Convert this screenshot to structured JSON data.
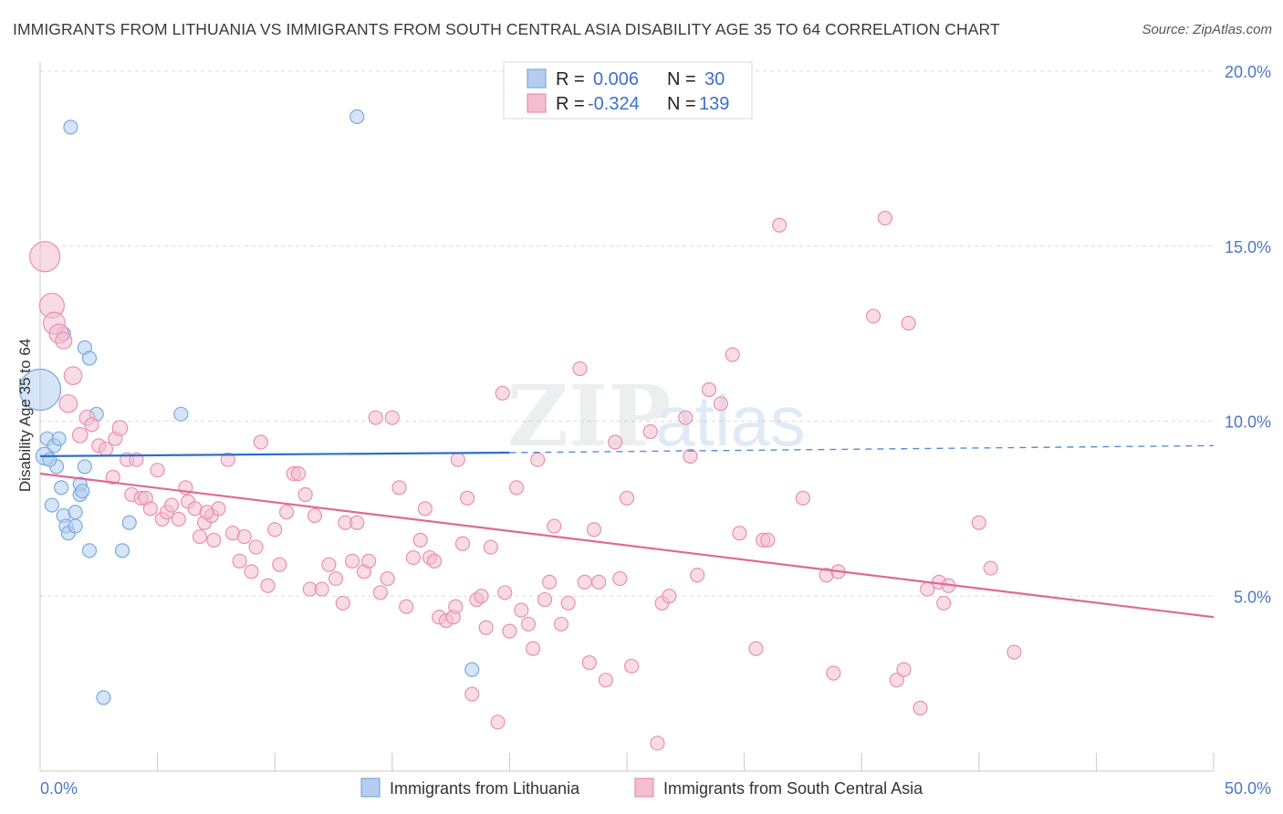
{
  "header": {
    "title": "IMMIGRANTS FROM LITHUANIA VS IMMIGRANTS FROM SOUTH CENTRAL ASIA DISABILITY AGE 35 TO 64 CORRELATION CHART",
    "source": "Source: ZipAtlas.com"
  },
  "watermark": {
    "part1": "ZIP",
    "part2": "atlas"
  },
  "legend_box": {
    "rows": [
      {
        "r_label": "R =",
        "r_value": "0.006",
        "n_label": "N =",
        "n_value": "30"
      },
      {
        "r_label": "R =",
        "r_value": "-0.324",
        "n_label": "N =",
        "n_value": "139"
      }
    ]
  },
  "chart_data": {
    "type": "scatter",
    "title": "IMMIGRANTS FROM LITHUANIA VS IMMIGRANTS FROM SOUTH CENTRAL ASIA DISABILITY AGE 35 TO 64 CORRELATION CHART",
    "xlabel": "",
    "ylabel": "Disability Age 35 to 64",
    "xlim": [
      0,
      50
    ],
    "ylim": [
      0,
      20
    ],
    "x_tick_labels": [
      "0.0%",
      "50.0%"
    ],
    "y_ticks": [
      5,
      10,
      15,
      20
    ],
    "y_tick_labels": [
      "5.0%",
      "10.0%",
      "15.0%",
      "20.0%"
    ],
    "grid": true,
    "legend_position": "bottom",
    "series": [
      {
        "name": "Immigrants from Lithuania",
        "color": "#7aaae0",
        "fill": "#b4cdf0",
        "trend": {
          "x": [
            0,
            20
          ],
          "y": [
            9.0,
            9.1
          ],
          "extended_x": [
            20,
            50
          ],
          "extended_y": [
            9.1,
            9.3
          ],
          "color": "#2c6fc9"
        },
        "points": [
          {
            "x": 0.0,
            "y": 10.9,
            "s": 3
          },
          {
            "x": 0.2,
            "y": 9.0,
            "s": 1.3
          },
          {
            "x": 0.3,
            "y": 9.5,
            "s": 1
          },
          {
            "x": 0.5,
            "y": 7.6,
            "s": 1
          },
          {
            "x": 0.6,
            "y": 9.3,
            "s": 1
          },
          {
            "x": 0.7,
            "y": 8.7,
            "s": 1
          },
          {
            "x": 0.8,
            "y": 9.5,
            "s": 1
          },
          {
            "x": 0.9,
            "y": 8.1,
            "s": 1
          },
          {
            "x": 1.0,
            "y": 7.3,
            "s": 1
          },
          {
            "x": 1.1,
            "y": 7.0,
            "s": 1
          },
          {
            "x": 1.2,
            "y": 6.8,
            "s": 1
          },
          {
            "x": 1.0,
            "y": 12.5,
            "s": 1
          },
          {
            "x": 1.3,
            "y": 18.4,
            "s": 1
          },
          {
            "x": 1.5,
            "y": 7.4,
            "s": 1
          },
          {
            "x": 1.5,
            "y": 7.0,
            "s": 1
          },
          {
            "x": 1.7,
            "y": 7.9,
            "s": 1
          },
          {
            "x": 1.7,
            "y": 8.2,
            "s": 1
          },
          {
            "x": 1.9,
            "y": 8.7,
            "s": 1
          },
          {
            "x": 1.9,
            "y": 12.1,
            "s": 1
          },
          {
            "x": 2.1,
            "y": 11.8,
            "s": 1
          },
          {
            "x": 2.1,
            "y": 6.3,
            "s": 1
          },
          {
            "x": 2.4,
            "y": 10.2,
            "s": 1
          },
          {
            "x": 2.7,
            "y": 2.1,
            "s": 1
          },
          {
            "x": 3.5,
            "y": 6.3,
            "s": 1
          },
          {
            "x": 3.8,
            "y": 7.1,
            "s": 1
          },
          {
            "x": 6.0,
            "y": 10.2,
            "s": 1
          },
          {
            "x": 13.5,
            "y": 18.7,
            "s": 1
          },
          {
            "x": 18.4,
            "y": 2.9,
            "s": 1
          },
          {
            "x": 0.4,
            "y": 8.9,
            "s": 1
          },
          {
            "x": 1.8,
            "y": 8.0,
            "s": 1
          }
        ]
      },
      {
        "name": "Immigrants from South Central Asia",
        "color": "#e890b0",
        "fill": "#f4bdd0",
        "trend": {
          "x": [
            0,
            50
          ],
          "y": [
            8.5,
            4.4
          ],
          "color": "#e06896"
        },
        "points": [
          {
            "x": 0.2,
            "y": 14.7,
            "s": 2.2
          },
          {
            "x": 0.5,
            "y": 13.3,
            "s": 1.8
          },
          {
            "x": 0.6,
            "y": 12.8,
            "s": 1.6
          },
          {
            "x": 0.8,
            "y": 12.5,
            "s": 1.4
          },
          {
            "x": 1.0,
            "y": 12.3,
            "s": 1.2
          },
          {
            "x": 1.4,
            "y": 11.3,
            "s": 1.3
          },
          {
            "x": 1.2,
            "y": 10.5,
            "s": 1.3
          },
          {
            "x": 1.7,
            "y": 9.6,
            "s": 1.1
          },
          {
            "x": 2.0,
            "y": 10.1,
            "s": 1.1
          },
          {
            "x": 2.2,
            "y": 9.9,
            "s": 1
          },
          {
            "x": 2.5,
            "y": 9.3,
            "s": 1
          },
          {
            "x": 2.8,
            "y": 9.2,
            "s": 1
          },
          {
            "x": 3.1,
            "y": 8.4,
            "s": 1
          },
          {
            "x": 3.2,
            "y": 9.5,
            "s": 1
          },
          {
            "x": 3.4,
            "y": 9.8,
            "s": 1.1
          },
          {
            "x": 3.7,
            "y": 8.9,
            "s": 1
          },
          {
            "x": 3.9,
            "y": 7.9,
            "s": 1
          },
          {
            "x": 4.1,
            "y": 8.9,
            "s": 1
          },
          {
            "x": 4.3,
            "y": 7.8,
            "s": 1
          },
          {
            "x": 4.5,
            "y": 7.8,
            "s": 1
          },
          {
            "x": 4.7,
            "y": 7.5,
            "s": 1
          },
          {
            "x": 5.0,
            "y": 8.6,
            "s": 1
          },
          {
            "x": 5.2,
            "y": 7.2,
            "s": 1
          },
          {
            "x": 5.4,
            "y": 7.4,
            "s": 1
          },
          {
            "x": 5.6,
            "y": 7.6,
            "s": 1
          },
          {
            "x": 5.9,
            "y": 7.2,
            "s": 1
          },
          {
            "x": 6.2,
            "y": 8.1,
            "s": 1
          },
          {
            "x": 6.3,
            "y": 7.7,
            "s": 1
          },
          {
            "x": 6.6,
            "y": 7.5,
            "s": 1
          },
          {
            "x": 6.8,
            "y": 6.7,
            "s": 1
          },
          {
            "x": 7.0,
            "y": 7.1,
            "s": 1
          },
          {
            "x": 7.3,
            "y": 7.3,
            "s": 1
          },
          {
            "x": 7.6,
            "y": 7.5,
            "s": 1
          },
          {
            "x": 7.4,
            "y": 6.6,
            "s": 1
          },
          {
            "x": 7.1,
            "y": 7.4,
            "s": 1
          },
          {
            "x": 8.0,
            "y": 8.9,
            "s": 1
          },
          {
            "x": 8.2,
            "y": 6.8,
            "s": 1
          },
          {
            "x": 8.5,
            "y": 6.0,
            "s": 1
          },
          {
            "x": 8.7,
            "y": 6.7,
            "s": 1
          },
          {
            "x": 9.0,
            "y": 5.7,
            "s": 1
          },
          {
            "x": 9.2,
            "y": 6.4,
            "s": 1
          },
          {
            "x": 9.4,
            "y": 9.4,
            "s": 1
          },
          {
            "x": 9.7,
            "y": 5.3,
            "s": 1
          },
          {
            "x": 10.0,
            "y": 6.9,
            "s": 1
          },
          {
            "x": 10.2,
            "y": 5.9,
            "s": 1
          },
          {
            "x": 10.5,
            "y": 7.4,
            "s": 1
          },
          {
            "x": 10.8,
            "y": 8.5,
            "s": 1
          },
          {
            "x": 11.0,
            "y": 8.5,
            "s": 1
          },
          {
            "x": 11.3,
            "y": 7.9,
            "s": 1
          },
          {
            "x": 11.5,
            "y": 5.2,
            "s": 1
          },
          {
            "x": 11.7,
            "y": 7.3,
            "s": 1
          },
          {
            "x": 12.0,
            "y": 5.2,
            "s": 1
          },
          {
            "x": 12.3,
            "y": 5.9,
            "s": 1
          },
          {
            "x": 12.6,
            "y": 5.5,
            "s": 1
          },
          {
            "x": 12.9,
            "y": 4.8,
            "s": 1
          },
          {
            "x": 13.0,
            "y": 7.1,
            "s": 1
          },
          {
            "x": 13.3,
            "y": 6.0,
            "s": 1
          },
          {
            "x": 13.5,
            "y": 7.1,
            "s": 1
          },
          {
            "x": 13.8,
            "y": 5.7,
            "s": 1
          },
          {
            "x": 14.0,
            "y": 6.0,
            "s": 1
          },
          {
            "x": 14.3,
            "y": 10.1,
            "s": 1
          },
          {
            "x": 14.5,
            "y": 5.1,
            "s": 1
          },
          {
            "x": 14.8,
            "y": 5.5,
            "s": 1
          },
          {
            "x": 15.0,
            "y": 10.1,
            "s": 1
          },
          {
            "x": 15.3,
            "y": 8.1,
            "s": 1
          },
          {
            "x": 15.6,
            "y": 4.7,
            "s": 1
          },
          {
            "x": 15.9,
            "y": 6.1,
            "s": 1
          },
          {
            "x": 16.2,
            "y": 6.6,
            "s": 1
          },
          {
            "x": 16.4,
            "y": 7.5,
            "s": 1
          },
          {
            "x": 16.6,
            "y": 6.1,
            "s": 1
          },
          {
            "x": 16.8,
            "y": 6.0,
            "s": 1
          },
          {
            "x": 17.0,
            "y": 4.4,
            "s": 1
          },
          {
            "x": 17.3,
            "y": 4.3,
            "s": 1
          },
          {
            "x": 17.6,
            "y": 4.4,
            "s": 1
          },
          {
            "x": 17.7,
            "y": 4.7,
            "s": 1
          },
          {
            "x": 17.8,
            "y": 8.9,
            "s": 1
          },
          {
            "x": 18.0,
            "y": 6.5,
            "s": 1
          },
          {
            "x": 18.2,
            "y": 7.8,
            "s": 1
          },
          {
            "x": 18.4,
            "y": 2.2,
            "s": 1
          },
          {
            "x": 18.6,
            "y": 4.9,
            "s": 1
          },
          {
            "x": 18.8,
            "y": 5.0,
            "s": 1
          },
          {
            "x": 19.0,
            "y": 4.1,
            "s": 1
          },
          {
            "x": 19.2,
            "y": 6.4,
            "s": 1
          },
          {
            "x": 19.5,
            "y": 1.4,
            "s": 1
          },
          {
            "x": 19.7,
            "y": 10.8,
            "s": 1
          },
          {
            "x": 19.8,
            "y": 5.1,
            "s": 1
          },
          {
            "x": 20.0,
            "y": 4.0,
            "s": 1
          },
          {
            "x": 20.3,
            "y": 8.1,
            "s": 1
          },
          {
            "x": 20.5,
            "y": 4.6,
            "s": 1
          },
          {
            "x": 20.8,
            "y": 4.2,
            "s": 1
          },
          {
            "x": 21.0,
            "y": 3.5,
            "s": 1
          },
          {
            "x": 21.2,
            "y": 8.9,
            "s": 1
          },
          {
            "x": 21.5,
            "y": 4.9,
            "s": 1
          },
          {
            "x": 21.7,
            "y": 5.4,
            "s": 1
          },
          {
            "x": 21.9,
            "y": 7.0,
            "s": 1
          },
          {
            "x": 22.2,
            "y": 4.2,
            "s": 1
          },
          {
            "x": 22.5,
            "y": 4.8,
            "s": 1
          },
          {
            "x": 23.0,
            "y": 11.5,
            "s": 1
          },
          {
            "x": 23.2,
            "y": 5.4,
            "s": 1
          },
          {
            "x": 23.4,
            "y": 3.1,
            "s": 1
          },
          {
            "x": 23.6,
            "y": 6.9,
            "s": 1
          },
          {
            "x": 23.8,
            "y": 5.4,
            "s": 1
          },
          {
            "x": 24.1,
            "y": 2.6,
            "s": 1
          },
          {
            "x": 24.5,
            "y": 9.4,
            "s": 1
          },
          {
            "x": 24.7,
            "y": 5.5,
            "s": 1
          },
          {
            "x": 25.0,
            "y": 7.8,
            "s": 1
          },
          {
            "x": 25.2,
            "y": 3.0,
            "s": 1
          },
          {
            "x": 26.0,
            "y": 9.7,
            "s": 1
          },
          {
            "x": 26.3,
            "y": 0.8,
            "s": 1
          },
          {
            "x": 26.5,
            "y": 4.8,
            "s": 1
          },
          {
            "x": 26.8,
            "y": 5.0,
            "s": 1
          },
          {
            "x": 27.5,
            "y": 10.1,
            "s": 1
          },
          {
            "x": 28.0,
            "y": 5.6,
            "s": 1
          },
          {
            "x": 28.5,
            "y": 10.9,
            "s": 1
          },
          {
            "x": 29.0,
            "y": 10.5,
            "s": 1
          },
          {
            "x": 29.5,
            "y": 11.9,
            "s": 1
          },
          {
            "x": 29.8,
            "y": 6.8,
            "s": 1
          },
          {
            "x": 30.5,
            "y": 3.5,
            "s": 1
          },
          {
            "x": 30.8,
            "y": 6.6,
            "s": 1
          },
          {
            "x": 31.0,
            "y": 6.6,
            "s": 1
          },
          {
            "x": 31.5,
            "y": 15.6,
            "s": 1
          },
          {
            "x": 32.5,
            "y": 7.8,
            "s": 1
          },
          {
            "x": 33.5,
            "y": 5.6,
            "s": 1
          },
          {
            "x": 33.8,
            "y": 2.8,
            "s": 1
          },
          {
            "x": 34.0,
            "y": 5.7,
            "s": 1
          },
          {
            "x": 35.5,
            "y": 13.0,
            "s": 1
          },
          {
            "x": 36.0,
            "y": 15.8,
            "s": 1
          },
          {
            "x": 36.5,
            "y": 2.6,
            "s": 1
          },
          {
            "x": 36.8,
            "y": 2.9,
            "s": 1
          },
          {
            "x": 37.0,
            "y": 12.8,
            "s": 1
          },
          {
            "x": 37.5,
            "y": 1.8,
            "s": 1
          },
          {
            "x": 37.8,
            "y": 5.2,
            "s": 1
          },
          {
            "x": 38.5,
            "y": 4.8,
            "s": 1
          },
          {
            "x": 40.0,
            "y": 7.1,
            "s": 1
          },
          {
            "x": 40.5,
            "y": 5.8,
            "s": 1
          },
          {
            "x": 41.5,
            "y": 3.4,
            "s": 1
          },
          {
            "x": 38.3,
            "y": 5.4,
            "s": 1
          },
          {
            "x": 38.7,
            "y": 5.3,
            "s": 1
          },
          {
            "x": 27.7,
            "y": 9.0,
            "s": 1
          }
        ]
      }
    ]
  }
}
